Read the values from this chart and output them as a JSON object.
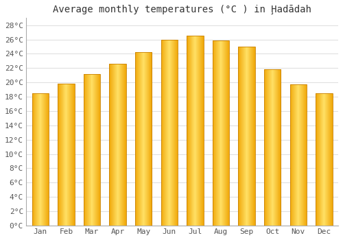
{
  "title": "Average monthly temperatures (°C ) in Ḩadādah",
  "months": [
    "Jan",
    "Feb",
    "Mar",
    "Apr",
    "May",
    "Jun",
    "Jul",
    "Aug",
    "Sep",
    "Oct",
    "Nov",
    "Dec"
  ],
  "values": [
    18.5,
    19.8,
    21.2,
    22.6,
    24.2,
    26.0,
    26.5,
    25.9,
    25.0,
    21.8,
    19.7,
    18.5
  ],
  "bar_color_left": "#F5A800",
  "bar_color_center": "#FFD966",
  "bar_color_right": "#F5A800",
  "ylim": [
    0,
    29
  ],
  "yticks": [
    0,
    2,
    4,
    6,
    8,
    10,
    12,
    14,
    16,
    18,
    20,
    22,
    24,
    26,
    28
  ],
  "ytick_labels": [
    "0°C",
    "2°C",
    "4°C",
    "6°C",
    "8°C",
    "10°C",
    "12°C",
    "14°C",
    "16°C",
    "18°C",
    "20°C",
    "22°C",
    "24°C",
    "26°C",
    "28°C"
  ],
  "background_color": "#ffffff",
  "plot_bg_color": "#ffffff",
  "grid_color": "#e0e0e0",
  "title_fontsize": 10,
  "tick_fontsize": 8,
  "font_family": "monospace",
  "bar_width": 0.65,
  "spine_color": "#aaaaaa"
}
